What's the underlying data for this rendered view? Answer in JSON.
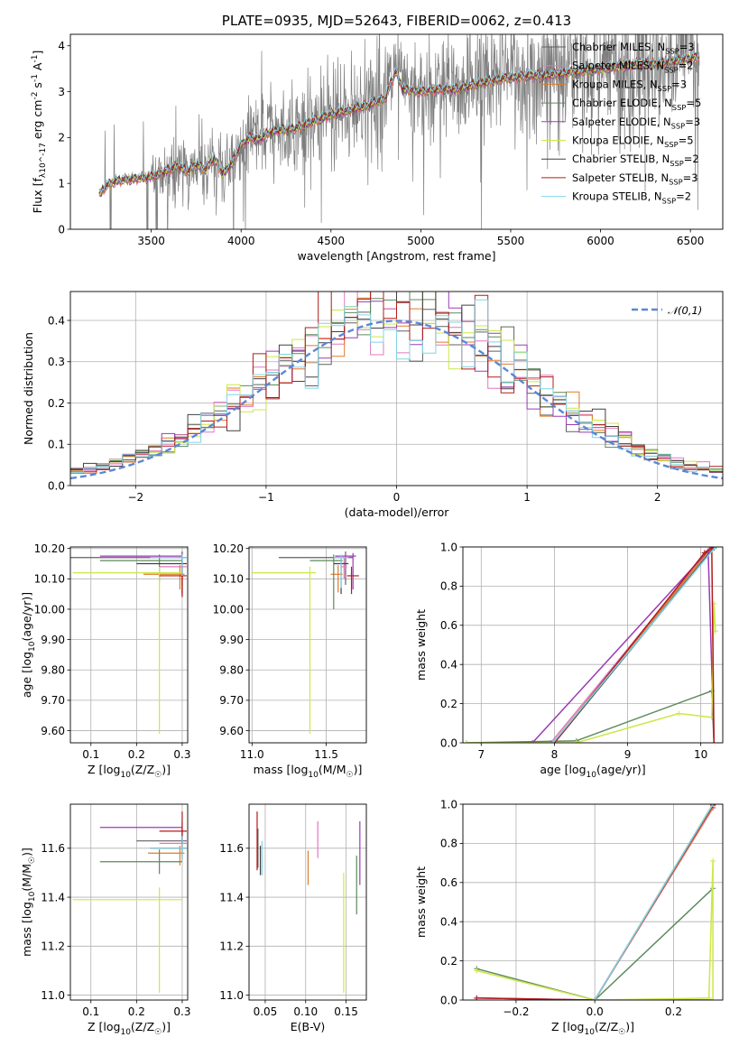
{
  "colors": {
    "Chabrier MILES": "#606060",
    "Salpeter MILES": "#e377c2",
    "Kroupa MILES": "#e07b28",
    "Chabrier ELODIE": "#5c8a5c",
    "Salpeter ELODIE": "#9b3bb5",
    "Kroupa ELODIE": "#cbe845",
    "Chabrier STELIB": "#404040",
    "Salpeter STELIB": "#b31b1b",
    "Kroupa STELIB": "#80d4e8",
    "data": "#7f7f7f",
    "normal": "#5b87d6"
  },
  "chart_data": [
    {
      "id": "spectrum",
      "type": "line",
      "title": "PLATE=0935, MJD=52643, FIBERID=0062, z=0.413",
      "xlabel": "wavelength [Angstrom, rest frame]",
      "ylabel": "Flux [f_λ 10^-17 erg cm^-2 s^-1 A^-1]",
      "xlim": [
        3050,
        6680
      ],
      "ylim": [
        0,
        4.25
      ],
      "xticks": [
        3500,
        4000,
        4500,
        5000,
        5500,
        6000,
        6500
      ],
      "yticks": [
        0,
        1,
        2,
        3,
        4
      ],
      "legend_position": "top-right",
      "legend": [
        "Chabrier MILES, N_SSP=3",
        "Salpeter MILES, N_SSP=2",
        "Kroupa MILES, N_SSP=3",
        "Chabrier ELODIE, N_SSP=5",
        "Salpeter ELODIE, N_SSP=3",
        "Kroupa ELODIE, N_SSP=5",
        "Chabrier STELIB, N_SSP=2",
        "Salpeter STELIB, N_SSP=3",
        "Kroupa STELIB, N_SSP=2"
      ],
      "legend_keys": [
        "Chabrier MILES",
        "Salpeter MILES",
        "Kroupa MILES",
        "Chabrier ELODIE",
        "Salpeter ELODIE",
        "Kroupa ELODIE",
        "Chabrier STELIB",
        "Salpeter STELIB",
        "Kroupa STELIB"
      ],
      "continuum": {
        "x": [
          3210,
          3250,
          3300,
          3350,
          3400,
          3450,
          3500,
          3550,
          3600,
          3650,
          3700,
          3750,
          3800,
          3850,
          3900,
          3950,
          4000,
          4050,
          4100,
          4150,
          4200,
          4300,
          4400,
          4500,
          4600,
          4700,
          4800,
          4860,
          4900,
          5000,
          5100,
          5200,
          5300,
          5400,
          5500,
          5600,
          5700,
          5800,
          5900,
          6000,
          6100,
          6200,
          6300,
          6400,
          6500,
          6550
        ],
        "y": [
          0.75,
          0.95,
          1.05,
          1.08,
          1.1,
          1.12,
          1.15,
          1.22,
          1.3,
          1.38,
          1.25,
          1.42,
          1.3,
          1.55,
          1.2,
          1.45,
          1.85,
          2.0,
          1.95,
          2.1,
          2.15,
          2.2,
          2.35,
          2.5,
          2.6,
          2.7,
          2.85,
          3.45,
          3.05,
          3.0,
          3.05,
          3.05,
          3.15,
          3.25,
          3.3,
          3.35,
          3.35,
          3.4,
          3.45,
          3.5,
          3.55,
          3.6,
          3.6,
          3.65,
          3.72,
          3.75
        ]
      }
    },
    {
      "id": "residuals",
      "type": "histogram",
      "xlabel": "(data-model)/error",
      "ylabel": "Normed distribution",
      "xlim": [
        -2.5,
        2.5
      ],
      "ylim": [
        0,
        0.47
      ],
      "xticks": [
        -2,
        -1,
        0,
        1,
        2
      ],
      "yticks": [
        0.0,
        0.1,
        0.2,
        0.3,
        0.4
      ],
      "bin_width": 0.1,
      "legend_position": "top-right",
      "legend": [
        "𝒩(0,1)"
      ],
      "normal": {
        "mean": 0,
        "std": 1
      }
    },
    {
      "id": "age_vs_Z",
      "type": "scatter",
      "xlabel": "Z [log10(Z/Z☉)]",
      "ylabel": "age  [log10(age/yr)]",
      "xlim": [
        0.055,
        0.312
      ],
      "ylim": [
        9.56,
        10.205
      ],
      "xticks": [
        0.1,
        0.2,
        0.3
      ],
      "yticks": [
        9.6,
        9.7,
        9.8,
        9.9,
        10.0,
        10.1,
        10.2
      ],
      "points": [
        {
          "model": "Chabrier MILES",
          "x": 0.3,
          "y": 10.17,
          "xerr": [
            0.25,
            0.01
          ],
          "yerr": [
            0.09,
            0.02
          ]
        },
        {
          "model": "Salpeter MILES",
          "x": 0.3,
          "y": 10.14,
          "xerr": [
            0.05,
            0.01
          ],
          "yerr": [
            0.04,
            0.03
          ]
        },
        {
          "model": "Kroupa MILES",
          "x": 0.295,
          "y": 10.115,
          "xerr": [
            0.08,
            0.01
          ],
          "yerr": [
            0.05,
            0.03
          ]
        },
        {
          "model": "Chabrier ELODIE",
          "x": 0.25,
          "y": 10.16,
          "xerr": [
            0.13,
            0.05
          ],
          "yerr": [
            0.07,
            0.02
          ]
        },
        {
          "model": "Salpeter ELODIE",
          "x": 0.3,
          "y": 10.175,
          "xerr": [
            0.18,
            0.0
          ],
          "yerr": [
            0.13,
            0.01
          ]
        },
        {
          "model": "Kroupa ELODIE",
          "x": 0.25,
          "y": 10.12,
          "xerr": [
            0.19,
            0.05
          ],
          "yerr": [
            0.53,
            0.02
          ]
        },
        {
          "model": "Chabrier STELIB",
          "x": 0.3,
          "y": 10.15,
          "xerr": [
            0.1,
            0.01
          ],
          "yerr": [
            0.1,
            0.02
          ]
        },
        {
          "model": "Salpeter STELIB",
          "x": 0.3,
          "y": 10.11,
          "xerr": [
            0.05,
            0.01
          ],
          "yerr": [
            0.07,
            0.03
          ]
        },
        {
          "model": "Kroupa STELIB",
          "x": 0.3,
          "y": 10.17,
          "xerr": [
            0.07,
            0.01
          ],
          "yerr": [
            0.06,
            0.01
          ]
        }
      ]
    },
    {
      "id": "age_vs_mass",
      "type": "scatter",
      "xlabel": "mass [log10(M/M☉)]",
      "ylabel": "",
      "xlim": [
        10.98,
        11.77
      ],
      "ylim": [
        9.56,
        10.205
      ],
      "xticks": [
        11.0,
        11.5
      ],
      "yticks": [
        9.6,
        9.7,
        9.8,
        9.9,
        10.0,
        10.1,
        10.2
      ],
      "points": [
        {
          "model": "Chabrier MILES",
          "x": 11.63,
          "y": 10.17,
          "xerr": [
            0.45,
            0.05
          ],
          "yerr": [
            0.09,
            0.02
          ]
        },
        {
          "model": "Salpeter MILES",
          "x": 11.62,
          "y": 10.14,
          "xerr": [
            0.02,
            0.02
          ],
          "yerr": [
            0.04,
            0.03
          ]
        },
        {
          "model": "Kroupa MILES",
          "x": 11.58,
          "y": 10.115,
          "xerr": [
            0.05,
            0.03
          ],
          "yerr": [
            0.06,
            0.03
          ]
        },
        {
          "model": "Chabrier ELODIE",
          "x": 11.55,
          "y": 10.16,
          "xerr": [
            0.16,
            0.06
          ],
          "yerr": [
            0.16,
            0.02
          ]
        },
        {
          "model": "Salpeter ELODIE",
          "x": 11.68,
          "y": 10.175,
          "xerr": [
            0.12,
            0.02
          ],
          "yerr": [
            0.11,
            0.01
          ]
        },
        {
          "model": "Kroupa ELODIE",
          "x": 11.39,
          "y": 10.12,
          "xerr": [
            0.39,
            0.04
          ],
          "yerr": [
            0.53,
            0.02
          ]
        },
        {
          "model": "Chabrier STELIB",
          "x": 11.6,
          "y": 10.15,
          "xerr": [
            0.05,
            0.05
          ],
          "yerr": [
            0.1,
            0.02
          ]
        },
        {
          "model": "Salpeter STELIB",
          "x": 11.67,
          "y": 10.11,
          "xerr": [
            0.03,
            0.05
          ],
          "yerr": [
            0.06,
            0.03
          ]
        },
        {
          "model": "Kroupa STELIB",
          "x": 11.6,
          "y": 10.17,
          "xerr": [
            0.05,
            0.05
          ],
          "yerr": [
            0.1,
            0.01
          ]
        }
      ]
    },
    {
      "id": "weight_vs_age",
      "type": "line",
      "xlabel": "age  [log10(age/yr)]",
      "ylabel": "mass weight",
      "xlim": [
        6.75,
        10.3
      ],
      "ylim": [
        0,
        1.0
      ],
      "xticks": [
        7,
        8,
        9,
        10
      ],
      "yticks": [
        0.0,
        0.2,
        0.4,
        0.6,
        0.8,
        1.0
      ],
      "series": [
        {
          "model": "Chabrier MILES",
          "x": [
            8.0,
            10.18
          ],
          "y": [
            0.0,
            1.0
          ]
        },
        {
          "model": "Salpeter MILES",
          "x": [
            7.95,
            10.1
          ],
          "y": [
            0.0,
            0.98
          ]
        },
        {
          "model": "Kroupa MILES",
          "x": [
            7.98,
            10.12
          ],
          "y": [
            0.0,
            0.985
          ]
        },
        {
          "model": "Chabrier ELODIE",
          "x": [
            6.8,
            8.3,
            10.15,
            10.18
          ],
          "y": [
            0.0,
            0.01,
            0.265,
            0.0
          ]
        },
        {
          "model": "Salpeter ELODIE",
          "x": [
            7.7,
            10.1,
            10.18
          ],
          "y": [
            0.0,
            0.98,
            0.0
          ]
        },
        {
          "model": "Kroupa ELODIE",
          "x": [
            6.8,
            8.3,
            9.7,
            10.15,
            10.18,
            10.2
          ],
          "y": [
            0.0,
            0.0,
            0.15,
            0.13,
            0.71,
            0.57
          ]
        },
        {
          "model": "Chabrier STELIB",
          "x": [
            8.0,
            10.18
          ],
          "y": [
            0.0,
            0.995
          ]
        },
        {
          "model": "Salpeter STELIB",
          "x": [
            8.0,
            10.05,
            10.15,
            10.18
          ],
          "y": [
            0.0,
            0.97,
            0.995,
            0.0
          ]
        },
        {
          "model": "Kroupa STELIB",
          "x": [
            7.98,
            10.2
          ],
          "y": [
            0.0,
            1.0
          ]
        }
      ]
    },
    {
      "id": "mass_vs_Z",
      "type": "scatter",
      "xlabel": "Z [log10(Z/Z☉)]",
      "ylabel": "mass [log10(M/M☉)]",
      "xlim": [
        0.055,
        0.312
      ],
      "ylim": [
        10.98,
        11.78
      ],
      "xticks": [
        0.1,
        0.2,
        0.3
      ],
      "yticks": [
        11.0,
        11.2,
        11.4,
        11.6
      ],
      "points": [
        {
          "model": "Chabrier MILES",
          "x": 0.3,
          "y": 11.63,
          "xerr": [
            0.1,
            0.01
          ],
          "yerr": [
            0.05,
            0.05
          ]
        },
        {
          "model": "Salpeter MILES",
          "x": 0.3,
          "y": 11.62,
          "xerr": [
            0.05,
            0.01
          ],
          "yerr": [
            0.02,
            0.02
          ]
        },
        {
          "model": "Kroupa MILES",
          "x": 0.295,
          "y": 11.58,
          "xerr": [
            0.07,
            0.01
          ],
          "yerr": [
            0.05,
            0.03
          ]
        },
        {
          "model": "Chabrier ELODIE",
          "x": 0.25,
          "y": 11.545,
          "xerr": [
            0.13,
            0.05
          ],
          "yerr": [
            0.05,
            0.05
          ]
        },
        {
          "model": "Salpeter ELODIE",
          "x": 0.3,
          "y": 11.685,
          "xerr": [
            0.18,
            0.0
          ],
          "yerr": [
            0.12,
            0.02
          ]
        },
        {
          "model": "Kroupa ELODIE",
          "x": 0.25,
          "y": 11.39,
          "xerr": [
            0.19,
            0.05
          ],
          "yerr": [
            0.38,
            0.05
          ]
        },
        {
          "model": "Chabrier STELIB",
          "x": 0.3,
          "y": 11.6,
          "xerr": [
            0.07,
            0.01
          ],
          "yerr": [
            0.05,
            0.05
          ]
        },
        {
          "model": "Salpeter STELIB",
          "x": 0.3,
          "y": 11.67,
          "xerr": [
            0.05,
            0.01
          ],
          "yerr": [
            0.05,
            0.08
          ]
        },
        {
          "model": "Kroupa STELIB",
          "x": 0.3,
          "y": 11.6,
          "xerr": [
            0.07,
            0.01
          ],
          "yerr": [
            0.05,
            0.05
          ]
        }
      ]
    },
    {
      "id": "mass_vs_ebv",
      "type": "scatter",
      "xlabel": "E(B-V)",
      "ylabel": "",
      "xlim": [
        0.03,
        0.175
      ],
      "ylim": [
        10.98,
        11.78
      ],
      "xticks": [
        0.05,
        0.1,
        0.15
      ],
      "yticks": [
        11.0,
        11.2,
        11.4,
        11.6
      ],
      "points": [
        {
          "model": "Chabrier MILES",
          "x": 0.041,
          "y": 11.6,
          "xerr": [
            0,
            0
          ],
          "yerr": [
            0.08,
            0.08
          ]
        },
        {
          "model": "Salpeter MILES",
          "x": 0.115,
          "y": 11.62,
          "xerr": [
            0,
            0
          ],
          "yerr": [
            0.06,
            0.09
          ]
        },
        {
          "model": "Kroupa MILES",
          "x": 0.103,
          "y": 11.52,
          "xerr": [
            0,
            0
          ],
          "yerr": [
            0.07,
            0.07
          ]
        },
        {
          "model": "Chabrier ELODIE",
          "x": 0.163,
          "y": 11.45,
          "xerr": [
            0,
            0
          ],
          "yerr": [
            0.12,
            0.12
          ]
        },
        {
          "model": "Salpeter ELODIE",
          "x": 0.167,
          "y": 11.58,
          "xerr": [
            0,
            0
          ],
          "yerr": [
            0.13,
            0.13
          ]
        },
        {
          "model": "Kroupa ELODIE",
          "x": 0.147,
          "y": 11.25,
          "xerr": [
            0,
            0
          ],
          "yerr": [
            0.24,
            0.25
          ]
        },
        {
          "model": "Chabrier STELIB",
          "x": 0.044,
          "y": 11.55,
          "xerr": [
            0,
            0
          ],
          "yerr": [
            0.06,
            0.06
          ]
        },
        {
          "model": "Salpeter STELIB",
          "x": 0.04,
          "y": 11.66,
          "xerr": [
            0,
            0
          ],
          "yerr": [
            0.15,
            0.09
          ]
        },
        {
          "model": "Kroupa STELIB",
          "x": 0.046,
          "y": 11.56,
          "xerr": [
            0,
            0
          ],
          "yerr": [
            0.07,
            0.07
          ]
        }
      ]
    },
    {
      "id": "weight_vs_Z",
      "type": "line",
      "xlabel": "Z [log10(Z/Z☉)]",
      "ylabel": "mass weight",
      "xlim": [
        -0.335,
        0.325
      ],
      "ylim": [
        0,
        1.0
      ],
      "xticks": [
        -0.2,
        0.0,
        0.2
      ],
      "yticks": [
        0.0,
        0.2,
        0.4,
        0.6,
        0.8,
        1.0
      ],
      "series": [
        {
          "model": "Chabrier MILES",
          "x": [
            0.0,
            0.3
          ],
          "y": [
            0.0,
            1.0
          ]
        },
        {
          "model": "Salpeter MILES",
          "x": [
            0.0,
            0.3
          ],
          "y": [
            0.0,
            0.98
          ]
        },
        {
          "model": "Kroupa MILES",
          "x": [
            0.0,
            0.3
          ],
          "y": [
            0.0,
            0.985
          ]
        },
        {
          "model": "Chabrier ELODIE",
          "x": [
            -0.3,
            0.0,
            0.3
          ],
          "y": [
            0.16,
            0.0,
            0.57
          ]
        },
        {
          "model": "Salpeter ELODIE",
          "x": [
            -0.3,
            0.0,
            0.3
          ],
          "y": [
            0.01,
            0.0,
            0.0
          ]
        },
        {
          "model": "Kroupa ELODIE",
          "x": [
            -0.3,
            0.0,
            0.29,
            0.3,
            0.3
          ],
          "y": [
            0.15,
            0.0,
            0.01,
            0.71,
            0.0
          ]
        },
        {
          "model": "Chabrier STELIB",
          "x": [
            0.0,
            0.3
          ],
          "y": [
            0.0,
            0.995
          ]
        },
        {
          "model": "Salpeter STELIB",
          "x": [
            -0.3,
            0.0,
            0.3
          ],
          "y": [
            0.01,
            0.0,
            0.995
          ]
        },
        {
          "model": "Kroupa STELIB",
          "x": [
            0.0,
            0.3
          ],
          "y": [
            0.0,
            1.0
          ]
        }
      ]
    }
  ]
}
